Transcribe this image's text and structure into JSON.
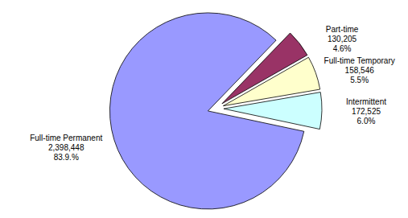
{
  "chart_data": {
    "type": "pie",
    "categories": [
      "Full-time Permanent",
      "Part-time",
      "Full-time Temporary",
      "Intermittent"
    ],
    "values": [
      2398448,
      130205,
      158546,
      172525
    ],
    "value_labels": [
      "2,398,448",
      "130,205",
      "158,546",
      "172,525"
    ],
    "percentages": [
      83.9,
      4.6,
      5.5,
      6.0
    ],
    "percentage_labels": [
      "83.9.%",
      "4.6%",
      "5.5%",
      "6.0%"
    ],
    "colors": [
      "#9999ff",
      "#993366",
      "#ffffcc",
      "#ccffff"
    ],
    "data_labels": true
  }
}
